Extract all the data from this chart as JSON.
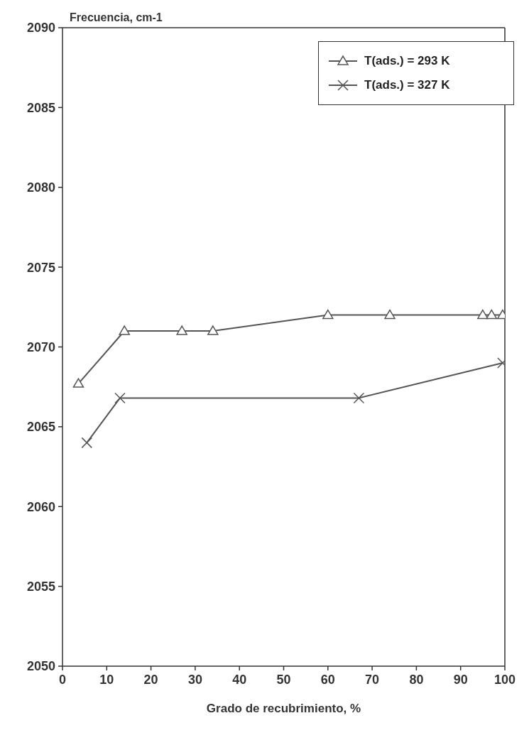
{
  "chart_data": {
    "type": "line",
    "ylabel": "Frecuencia, cm-1",
    "xlabel": "Grado de recubrimiento, %",
    "xlim": [
      0,
      100
    ],
    "xticks": [
      0,
      10,
      20,
      30,
      40,
      50,
      60,
      70,
      80,
      90,
      100
    ],
    "ylim": [
      2050,
      2090
    ],
    "yticks": [
      2050,
      2055,
      2060,
      2065,
      2070,
      2075,
      2080,
      2085,
      2090
    ],
    "grid": false,
    "legend": "top right",
    "series": [
      {
        "name": "T(ads.) = 293 K",
        "color": "#555555",
        "marker": "triangle",
        "x": [
          3.6,
          14,
          27,
          34,
          60,
          74,
          95,
          97,
          99.5
        ],
        "values": [
          2067.7,
          2071,
          2071,
          2071,
          2072,
          2072,
          2072,
          2072,
          2072
        ]
      },
      {
        "name": "T(ads.) = 327 K",
        "color": "#555555",
        "marker": "cross",
        "x": [
          5.5,
          13,
          67,
          99.5
        ],
        "values": [
          2064,
          2066.8,
          2066.8,
          2069
        ]
      }
    ]
  }
}
